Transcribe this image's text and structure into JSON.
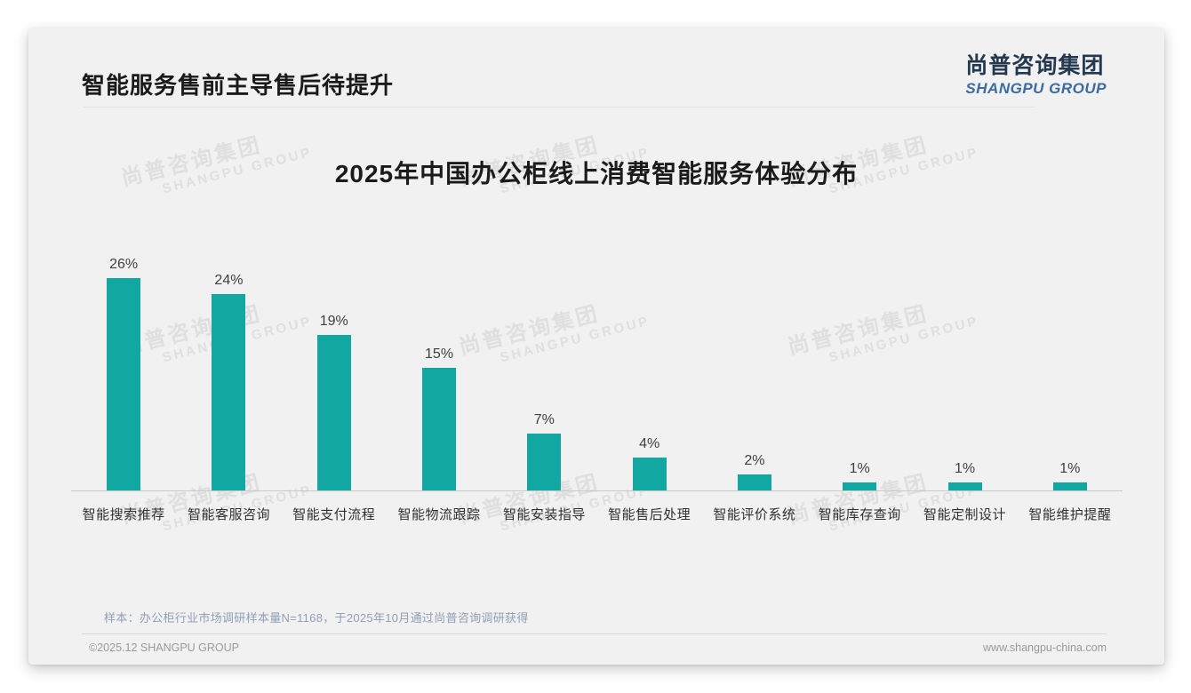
{
  "page": {
    "title": "智能服务售前主导售后待提升",
    "logo": {
      "cn": "尚普咨询集团",
      "en": "SHANGPU GROUP"
    },
    "watermark": {
      "cn": "尚普咨询集团",
      "en": "SHANGPU GROUP"
    },
    "footnote": "样本：办公柜行业市场调研样本量N=1168，于2025年10月通过尚普咨询调研获得",
    "footer_left": "©2025.12 SHANGPU GROUP",
    "footer_right": "www.shangpu-china.com"
  },
  "chart_data": {
    "type": "bar",
    "title": "2025年中国办公柜线上消费智能服务体验分布",
    "categories": [
      "智能搜索推荐",
      "智能客服咨询",
      "智能支付流程",
      "智能物流跟踪",
      "智能安装指导",
      "智能售后处理",
      "智能评价系统",
      "智能库存查询",
      "智能定制设计",
      "智能维护提醒"
    ],
    "values": [
      26,
      24,
      19,
      15,
      7,
      4,
      2,
      1,
      1,
      1
    ],
    "value_labels": [
      "26%",
      "24%",
      "19%",
      "15%",
      "7%",
      "4%",
      "2%",
      "1%",
      "1%",
      "1%"
    ],
    "unit": "%",
    "bar_color": "#12a7a0",
    "ylim": [
      0,
      28
    ],
    "grid": false,
    "legend": "none",
    "xlabel": "",
    "ylabel": ""
  }
}
